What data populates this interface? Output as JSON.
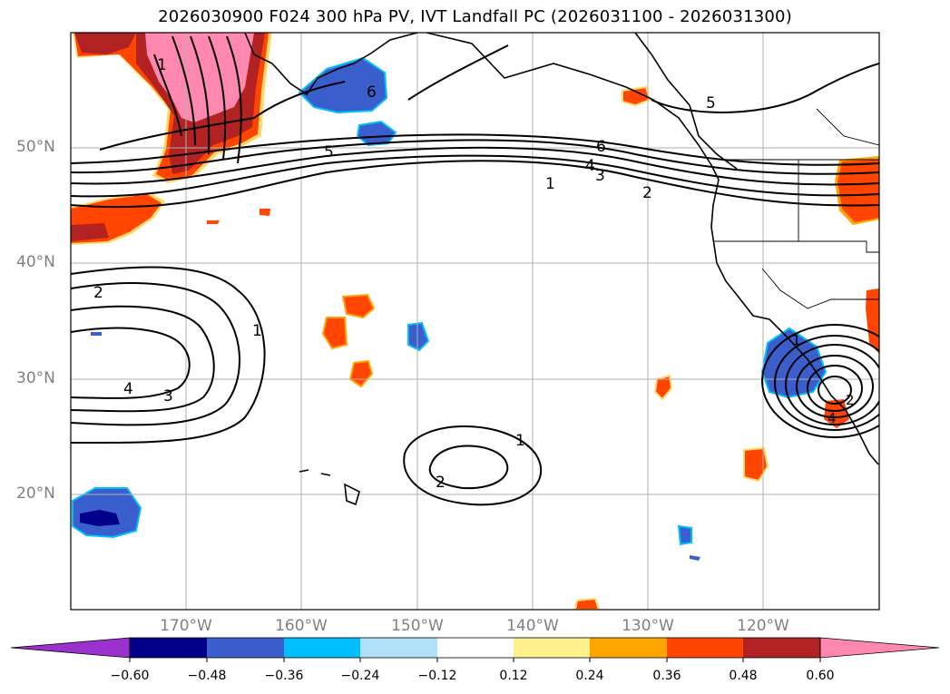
{
  "title": "2026030900 F024 300 hPa PV, IVT Landfall PC (2026031100 - 2026031300)",
  "lat_labels": [
    "50°N",
    "40°N",
    "30°N",
    "20°N"
  ],
  "lon_labels": [
    "170°W",
    "160°W",
    "150°W",
    "140°W",
    "130°W",
    "120°W"
  ],
  "colorbar": {
    "ticks": [
      "−0.60",
      "−0.48",
      "−0.36",
      "−0.24",
      "−0.12",
      "0.12",
      "0.24",
      "0.36",
      "0.48",
      "0.60"
    ],
    "colors": [
      "#9932cc",
      "#00008b",
      "#3a5fcd",
      "#00bfff",
      "#afe0fa",
      "#ffffff",
      "#fff08c",
      "#ffa500",
      "#ff4500",
      "#b22222",
      "#ff88b0"
    ]
  },
  "contour_labels": {
    "c1": "1",
    "c2": "2",
    "c3": "3",
    "c4": "4",
    "c5": "5",
    "c6": "6"
  },
  "colors": {
    "land": "#000000",
    "grid": "#b0b0b0",
    "tick_label": "#808080"
  }
}
